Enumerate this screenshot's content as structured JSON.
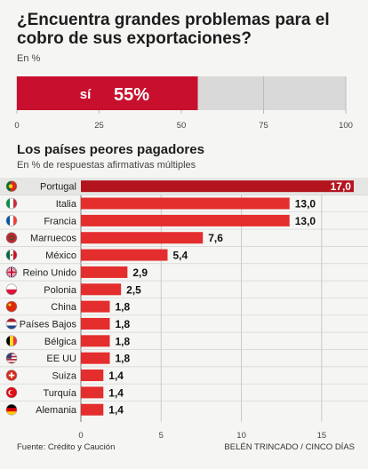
{
  "title": "¿Encuentra grandes problemas para el cobro de sus exportaciones?",
  "unit_top": "En %",
  "subtitle": "Los países peores pagadores",
  "unit_bottom": "En % de respuestas afirmativas múltiples",
  "footer": {
    "source": "Fuente: Crédito y Caución",
    "credit": "BELÉN TRINCADO / CINCO DÍAS"
  },
  "colors": {
    "accent": "#c8102e",
    "bar": "#e42d2d",
    "highlight": "#b4141e",
    "track": "#d9d9d9"
  },
  "chart_data": [
    {
      "type": "bar",
      "orientation": "horizontal",
      "categories": [
        "Sí"
      ],
      "values": [
        55
      ],
      "data_labels": [
        "55%"
      ],
      "category_label": "sí",
      "xlim": [
        0,
        100
      ],
      "xticks": [
        "0",
        "25",
        "50",
        "75",
        "100"
      ]
    },
    {
      "type": "bar",
      "orientation": "horizontal",
      "title": "Los países peores pagadores",
      "categories": [
        "Portugal",
        "Italia",
        "Francia",
        "Marruecos",
        "México",
        "Reino Unido",
        "Polonia",
        "China",
        "Países Bajos",
        "Bélgica",
        "EE UU",
        "Suiza",
        "Turquía",
        "Alemania"
      ],
      "values": [
        17.0,
        13.0,
        13.0,
        7.6,
        5.4,
        2.9,
        2.5,
        1.8,
        1.8,
        1.8,
        1.8,
        1.4,
        1.4,
        1.4
      ],
      "data_labels": [
        "17,0",
        "13,0",
        "13,0",
        "7,6",
        "5,4",
        "2,9",
        "2,5",
        "1,8",
        "1,8",
        "1,8",
        "1,8",
        "1,4",
        "1,4",
        "1,4"
      ],
      "flag_icons": [
        "flag-portugal-icon",
        "flag-italy-icon",
        "flag-france-icon",
        "flag-morocco-icon",
        "flag-mexico-icon",
        "flag-uk-icon",
        "flag-poland-icon",
        "flag-china-icon",
        "flag-netherlands-icon",
        "flag-belgium-icon",
        "flag-usa-icon",
        "flag-switzerland-icon",
        "flag-turkey-icon",
        "flag-germany-icon"
      ],
      "xlim": [
        0,
        17.5
      ],
      "xticks": [
        0,
        5,
        10,
        15
      ]
    }
  ]
}
